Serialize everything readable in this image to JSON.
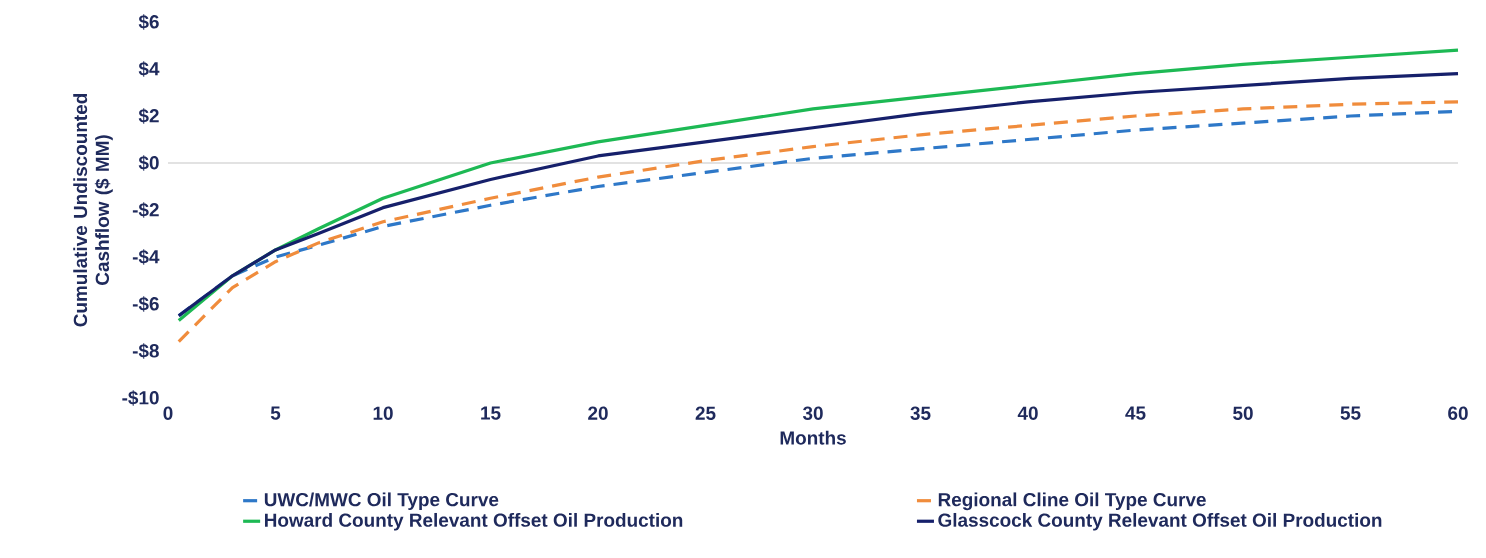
{
  "chart_data": {
    "type": "line",
    "xlabel": "Months",
    "ylabel": "Cumulative Undiscounted Cashflow ($ MM)",
    "x": [
      0.5,
      3,
      5,
      7,
      10,
      15,
      20,
      25,
      30,
      35,
      40,
      45,
      50,
      55,
      60
    ],
    "series": [
      {
        "name": "UWC/MWC Oil Type Curve",
        "color": "#2e78c8",
        "line_style": "dashed",
        "values": [
          -6.5,
          -4.8,
          -4.0,
          -3.5,
          -2.7,
          -1.8,
          -1.0,
          -0.4,
          0.2,
          0.6,
          1.0,
          1.4,
          1.7,
          2.0,
          2.2
        ]
      },
      {
        "name": "Regional Cline Oil Type Curve",
        "color": "#f08c3c",
        "line_style": "dashed",
        "values": [
          -7.6,
          -5.3,
          -4.2,
          -3.4,
          -2.5,
          -1.5,
          -0.6,
          0.1,
          0.7,
          1.2,
          1.6,
          2.0,
          2.3,
          2.5,
          2.6
        ]
      },
      {
        "name": "Howard County Relevant Offset Oil Production",
        "color": "#1db954",
        "line_style": "solid",
        "values": [
          -6.7,
          -4.8,
          -3.7,
          -2.8,
          -1.5,
          0.0,
          0.9,
          1.6,
          2.3,
          2.8,
          3.3,
          3.8,
          4.2,
          4.5,
          4.8
        ]
      },
      {
        "name": "Glasscock County Relevant Offset Oil Production",
        "color": "#16206b",
        "line_style": "solid",
        "values": [
          -6.5,
          -4.8,
          -3.7,
          -3.0,
          -1.9,
          -0.7,
          0.3,
          0.9,
          1.5,
          2.1,
          2.6,
          3.0,
          3.3,
          3.6,
          3.8
        ]
      }
    ],
    "xlim": [
      0,
      60
    ],
    "xticks": [
      0,
      5,
      10,
      15,
      20,
      25,
      30,
      35,
      40,
      45,
      50,
      55,
      60
    ],
    "ylim": [
      -10,
      6
    ],
    "yticks": [
      {
        "value": -10,
        "label": "-$10"
      },
      {
        "value": -8,
        "label": "-$8"
      },
      {
        "value": -6,
        "label": "-$6"
      },
      {
        "value": -4,
        "label": "-$4"
      },
      {
        "value": -2,
        "label": "-$2"
      },
      {
        "value": 0,
        "label": "$0"
      },
      {
        "value": 2,
        "label": "$2"
      },
      {
        "value": 4,
        "label": "$4"
      },
      {
        "value": 6,
        "label": "$6"
      }
    ],
    "ref_lines": [
      {
        "axis": "y",
        "value": 0,
        "color": "#d9d9d9"
      }
    ],
    "grid": false,
    "legend": "bottom",
    "marker": "none"
  }
}
